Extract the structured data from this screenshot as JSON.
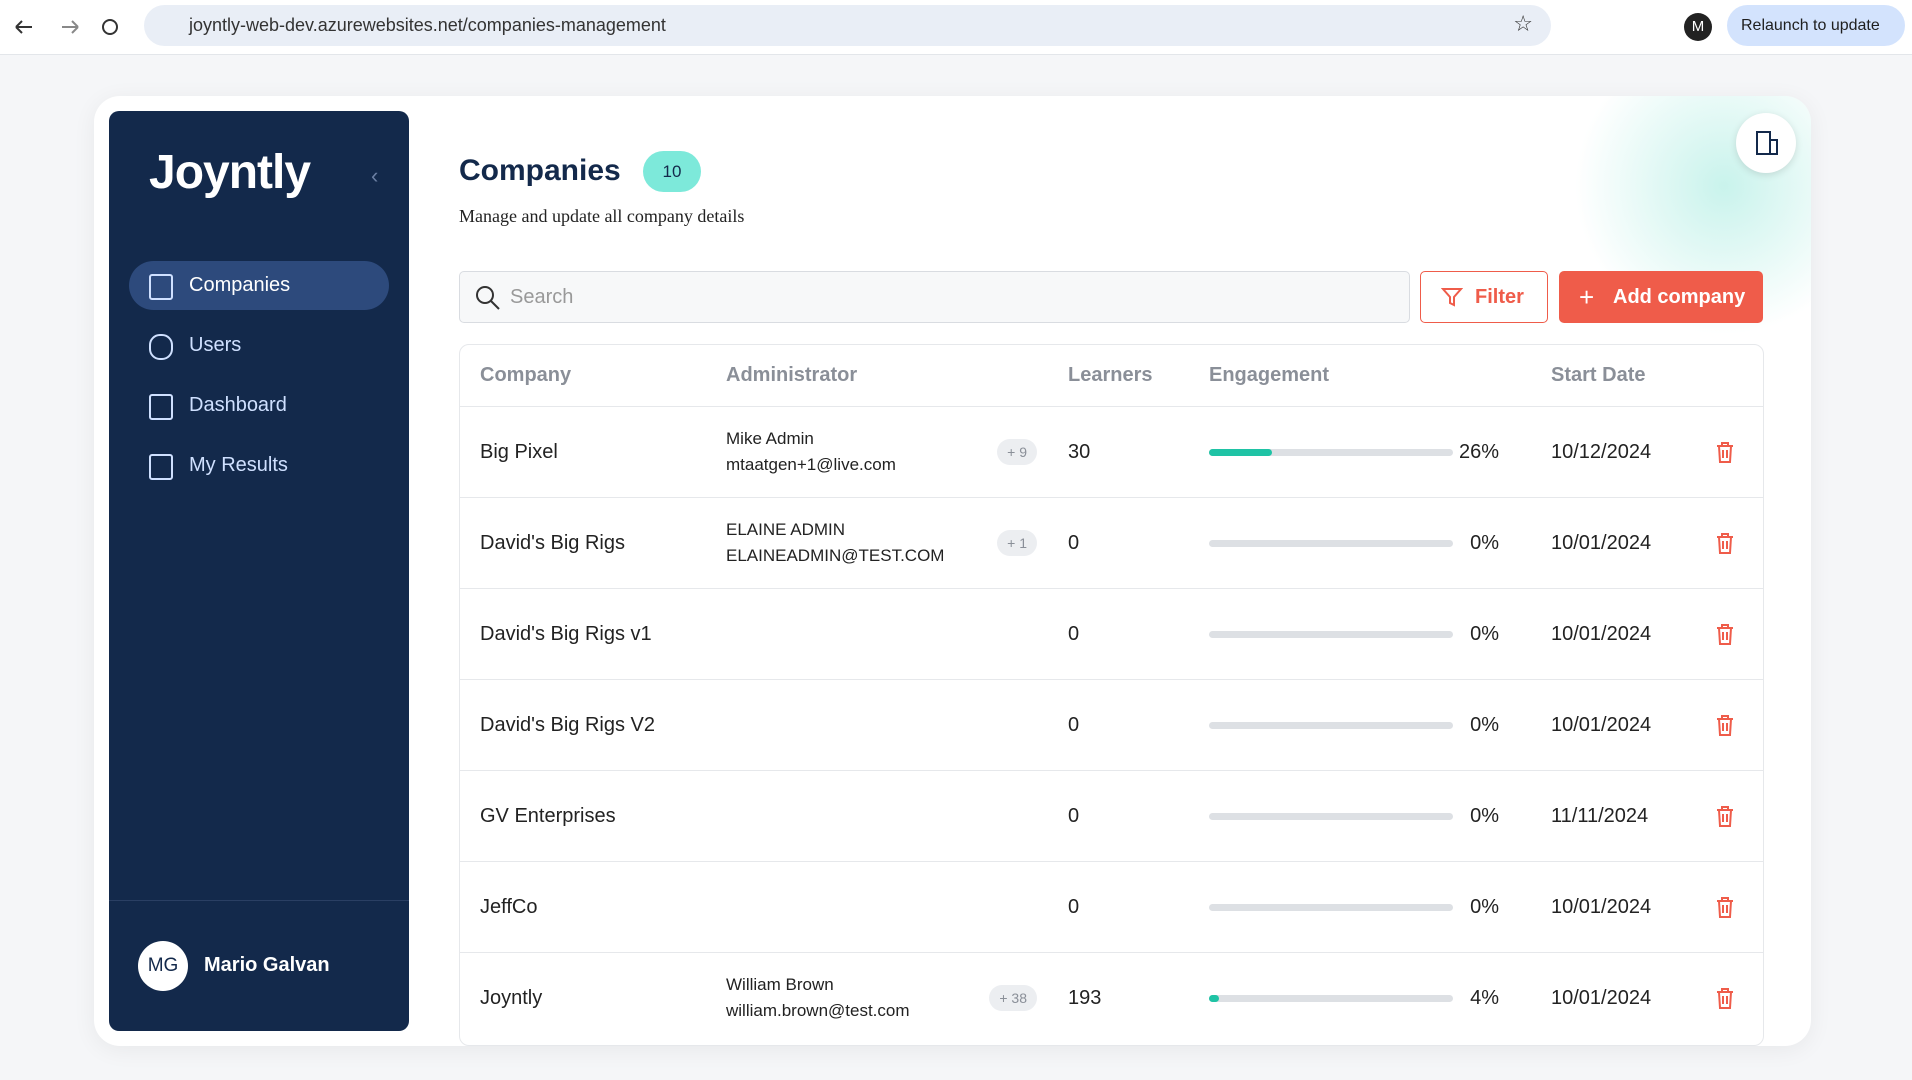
{
  "browser": {
    "url": "joyntly-web-dev.azurewebsites.net/companies-management",
    "profile": "M",
    "relaunch": "Relaunch to update"
  },
  "sidebar": {
    "logo": "Joyntly",
    "nav": [
      "Companies",
      "Users",
      "Dashboard",
      "My Results"
    ],
    "user": {
      "initials": "MG",
      "name": "Mario Galvan"
    }
  },
  "header": {
    "title": "Companies",
    "count": 10,
    "subtitle": "Manage and update all company details"
  },
  "toolbar": {
    "search_placeholder": "Search",
    "filter": "Filter",
    "add": "Add company"
  },
  "table": {
    "columns": [
      "Company",
      "Administrator",
      "Learners",
      "Engagement",
      "Start Date"
    ],
    "rows": [
      {
        "company": "Big Pixel",
        "admin_name": "Mike Admin",
        "admin_email": "mtaatgen+1@live.com",
        "admin_extra": "+ 9",
        "learners": 30,
        "engagement": {
          "value": 26,
          "label": "26%"
        },
        "start_date": "10/12/2024"
      },
      {
        "company": "David's Big Rigs",
        "admin_name": "ELAINE ADMIN",
        "admin_email": "ELAINEADMIN@TEST.COM",
        "admin_extra": "+ 1",
        "learners": 0,
        "engagement": {
          "value": 0,
          "label": "0%"
        },
        "start_date": "10/01/2024"
      },
      {
        "company": "David's Big Rigs v1",
        "learners": 0,
        "engagement": {
          "value": 0,
          "label": "0%"
        },
        "start_date": "10/01/2024"
      },
      {
        "company": "David's Big Rigs V2",
        "learners": 0,
        "engagement": {
          "value": 0,
          "label": "0%"
        },
        "start_date": "10/01/2024"
      },
      {
        "company": "GV Enterprises",
        "learners": 0,
        "engagement": {
          "value": 0,
          "label": "0%"
        },
        "start_date": "11/11/2024"
      },
      {
        "company": "JeffCo",
        "learners": 0,
        "engagement": {
          "value": 0,
          "label": "0%"
        },
        "start_date": "10/01/2024"
      },
      {
        "company": "Joyntly",
        "admin_name": "William Brown",
        "admin_email": "william.brown@test.com",
        "admin_extra": "+ 38",
        "learners": 193,
        "engagement": {
          "value": 4,
          "label": "4%"
        },
        "start_date": "10/01/2024"
      }
    ]
  }
}
